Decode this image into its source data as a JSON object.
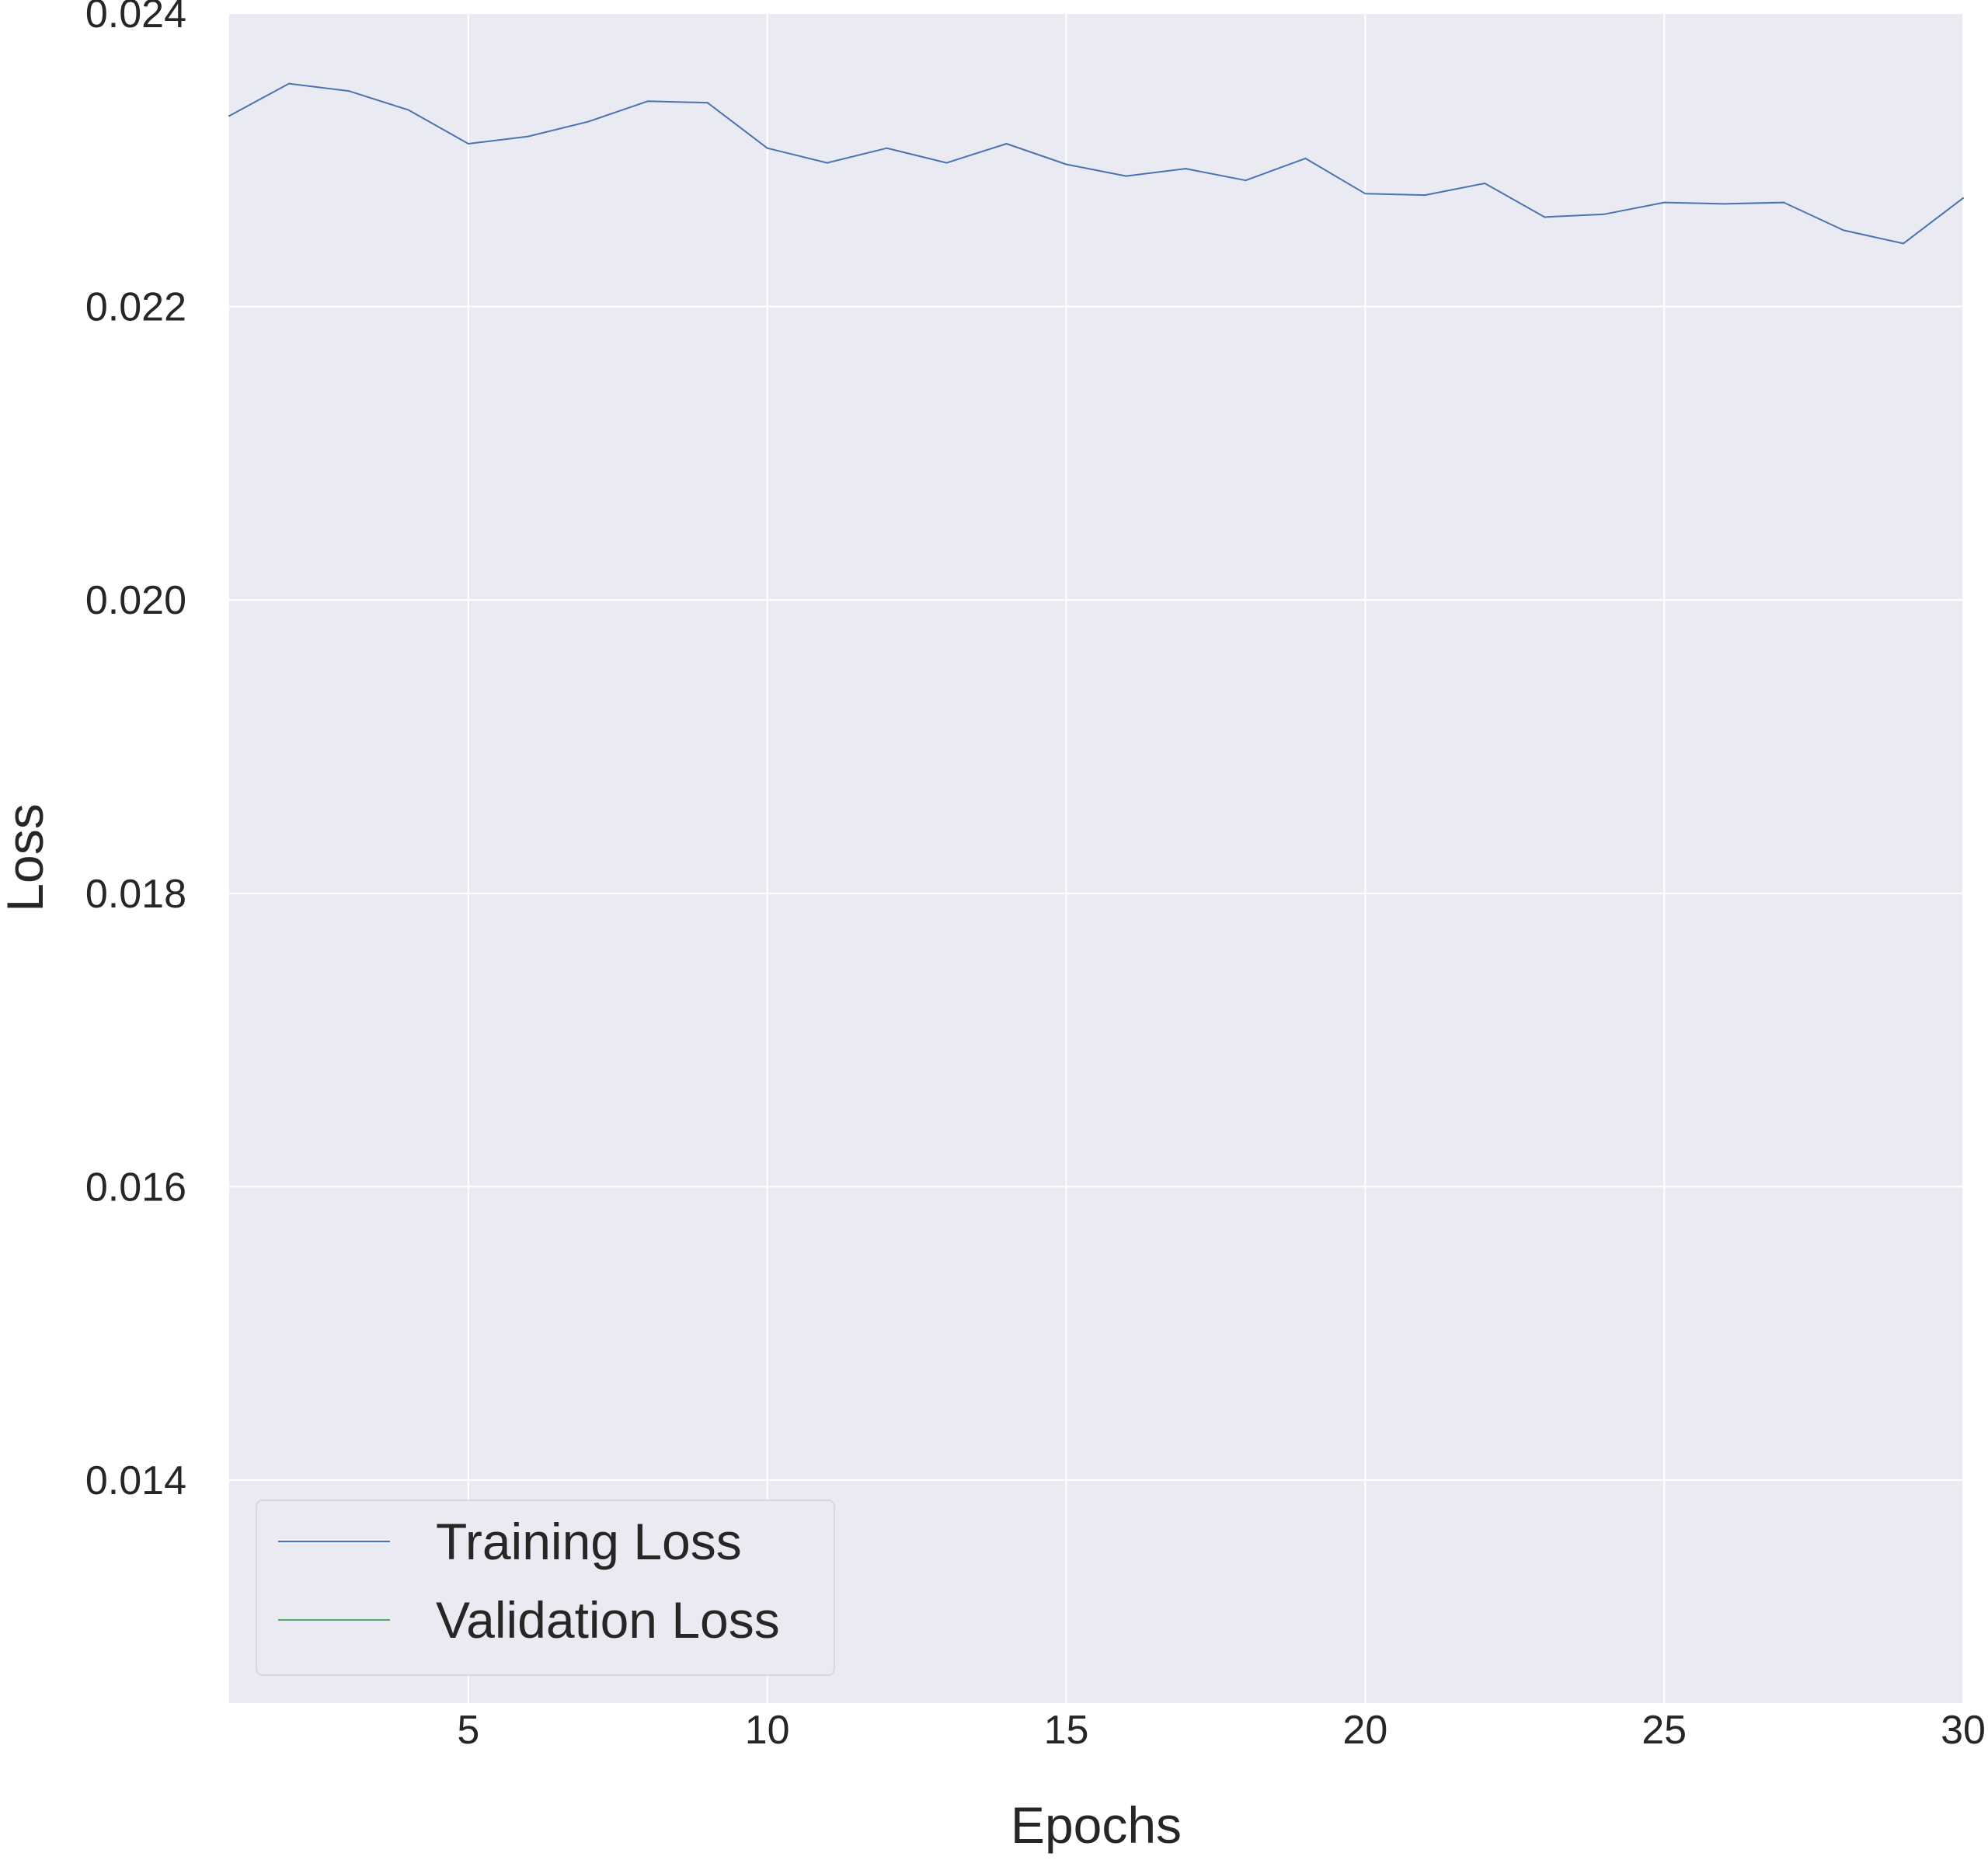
{
  "chart_data": {
    "type": "line",
    "title": "",
    "xlabel": "Epochs",
    "ylabel": "Loss",
    "xlim": [
      1,
      30
    ],
    "ylim": [
      0.01248,
      0.024
    ],
    "xticks": [
      5,
      10,
      15,
      20,
      25,
      30
    ],
    "xtick_labels": [
      "5",
      "10",
      "15",
      "20",
      "25",
      "30"
    ],
    "yticks": [
      0.014,
      0.016,
      0.018,
      0.02,
      0.022,
      0.024
    ],
    "ytick_labels": [
      "0.014",
      "0.016",
      "0.018",
      "0.020",
      "0.022",
      "0.024"
    ],
    "grid": true,
    "style": {
      "plot_background": "#eaeaf2",
      "grid_color": "#ffffff",
      "text_color": "#262626"
    },
    "legend": {
      "placement": "lower-left",
      "entries": [
        {
          "label": "Training Loss",
          "color": "#4c72b0"
        },
        {
          "label": "Validation Loss",
          "color": "#55a868"
        }
      ]
    },
    "series": [
      {
        "name": "Training Loss",
        "color": "#4c72b0",
        "x": [
          1,
          2,
          3,
          4,
          5,
          6,
          7,
          8,
          9,
          10,
          11,
          12,
          13,
          14,
          15,
          16,
          17,
          18,
          19,
          20,
          21,
          22,
          23,
          24,
          25,
          26,
          27,
          28,
          29,
          30
        ],
        "y": [
          0.0233,
          0.02352,
          0.02347,
          0.02334,
          0.02311,
          0.02316,
          0.02326,
          0.0234,
          0.02339,
          0.02308,
          0.02298,
          0.02308,
          0.02298,
          0.02311,
          0.02297,
          0.02289,
          0.02294,
          0.02286,
          0.02301,
          0.02277,
          0.02276,
          0.02284,
          0.02261,
          0.02263,
          0.02271,
          0.0227,
          0.02271,
          0.02252,
          0.02243,
          0.02274
        ]
      },
      {
        "name": "Validation Loss",
        "color": "#55a868",
        "x": [],
        "y": []
      }
    ]
  }
}
